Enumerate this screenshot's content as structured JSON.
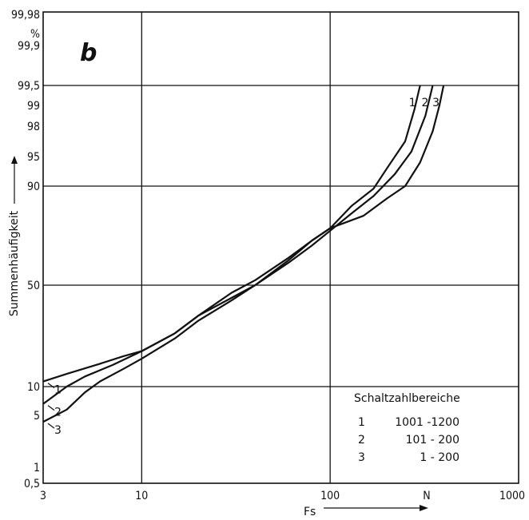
{
  "chart_data": {
    "type": "line",
    "panel_label": "b",
    "xlabel": "Fs",
    "x_unit": "N",
    "ylabel": "Summenhäufigkeit",
    "y_unit": "%",
    "x_scale": "log",
    "y_scale": "probability",
    "xlim": [
      3,
      1000
    ],
    "ylim": [
      0.5,
      99.98
    ],
    "grid": true,
    "x_tick_labels": [
      "3",
      "10",
      "100",
      "N",
      "1000"
    ],
    "y_tick_labels": [
      "0,5",
      "1",
      "5",
      "10",
      "50",
      "90",
      "95",
      "98",
      "99",
      "99,5",
      "99,9",
      "99,98",
      "%"
    ],
    "legend": {
      "title": "Schaltzahlbereiche",
      "position": "bottom-right",
      "entries": [
        {
          "num": "1",
          "range": "1001 -1200"
        },
        {
          "num": "2",
          "range": "101 -  200"
        },
        {
          "num": "3",
          "range": "1 -  200"
        }
      ]
    },
    "series": [
      {
        "name": "1",
        "points": [
          {
            "x": 3,
            "y": 12
          },
          {
            "x": 4,
            "y": 15
          },
          {
            "x": 6,
            "y": 19
          },
          {
            "x": 8,
            "y": 22
          },
          {
            "x": 10,
            "y": 24
          },
          {
            "x": 15,
            "y": 31
          },
          {
            "x": 20,
            "y": 38
          },
          {
            "x": 30,
            "y": 47
          },
          {
            "x": 40,
            "y": 52
          },
          {
            "x": 60,
            "y": 61
          },
          {
            "x": 80,
            "y": 68
          },
          {
            "x": 100,
            "y": 73
          },
          {
            "x": 130,
            "y": 82
          },
          {
            "x": 170,
            "y": 89
          },
          {
            "x": 200,
            "y": 93
          },
          {
            "x": 250,
            "y": 96.5
          },
          {
            "x": 280,
            "y": 98.8
          },
          {
            "x": 300,
            "y": 99.5
          }
        ]
      },
      {
        "name": "2",
        "points": [
          {
            "x": 3,
            "y": 7
          },
          {
            "x": 4,
            "y": 10
          },
          {
            "x": 5,
            "y": 14
          },
          {
            "x": 7,
            "y": 18.5
          },
          {
            "x": 10,
            "y": 24
          },
          {
            "x": 15,
            "y": 31
          },
          {
            "x": 20,
            "y": 38
          },
          {
            "x": 30,
            "y": 45
          },
          {
            "x": 40,
            "y": 50
          },
          {
            "x": 60,
            "y": 59
          },
          {
            "x": 80,
            "y": 66
          },
          {
            "x": 100,
            "y": 72
          },
          {
            "x": 130,
            "y": 79
          },
          {
            "x": 170,
            "y": 86
          },
          {
            "x": 220,
            "y": 92
          },
          {
            "x": 270,
            "y": 95.5
          },
          {
            "x": 320,
            "y": 98.5
          },
          {
            "x": 350,
            "y": 99.5
          }
        ]
      },
      {
        "name": "3",
        "points": [
          {
            "x": 3,
            "y": 4.5
          },
          {
            "x": 4,
            "y": 6
          },
          {
            "x": 5,
            "y": 9
          },
          {
            "x": 6,
            "y": 12
          },
          {
            "x": 8,
            "y": 17
          },
          {
            "x": 10,
            "y": 21
          },
          {
            "x": 15,
            "y": 29
          },
          {
            "x": 20,
            "y": 36
          },
          {
            "x": 30,
            "y": 44
          },
          {
            "x": 40,
            "y": 50
          },
          {
            "x": 60,
            "y": 60
          },
          {
            "x": 80,
            "y": 68
          },
          {
            "x": 100,
            "y": 73
          },
          {
            "x": 150,
            "y": 78
          },
          {
            "x": 200,
            "y": 85
          },
          {
            "x": 250,
            "y": 90
          },
          {
            "x": 300,
            "y": 94
          },
          {
            "x": 350,
            "y": 97.5
          },
          {
            "x": 380,
            "y": 99
          },
          {
            "x": 400,
            "y": 99.5
          }
        ]
      }
    ]
  }
}
